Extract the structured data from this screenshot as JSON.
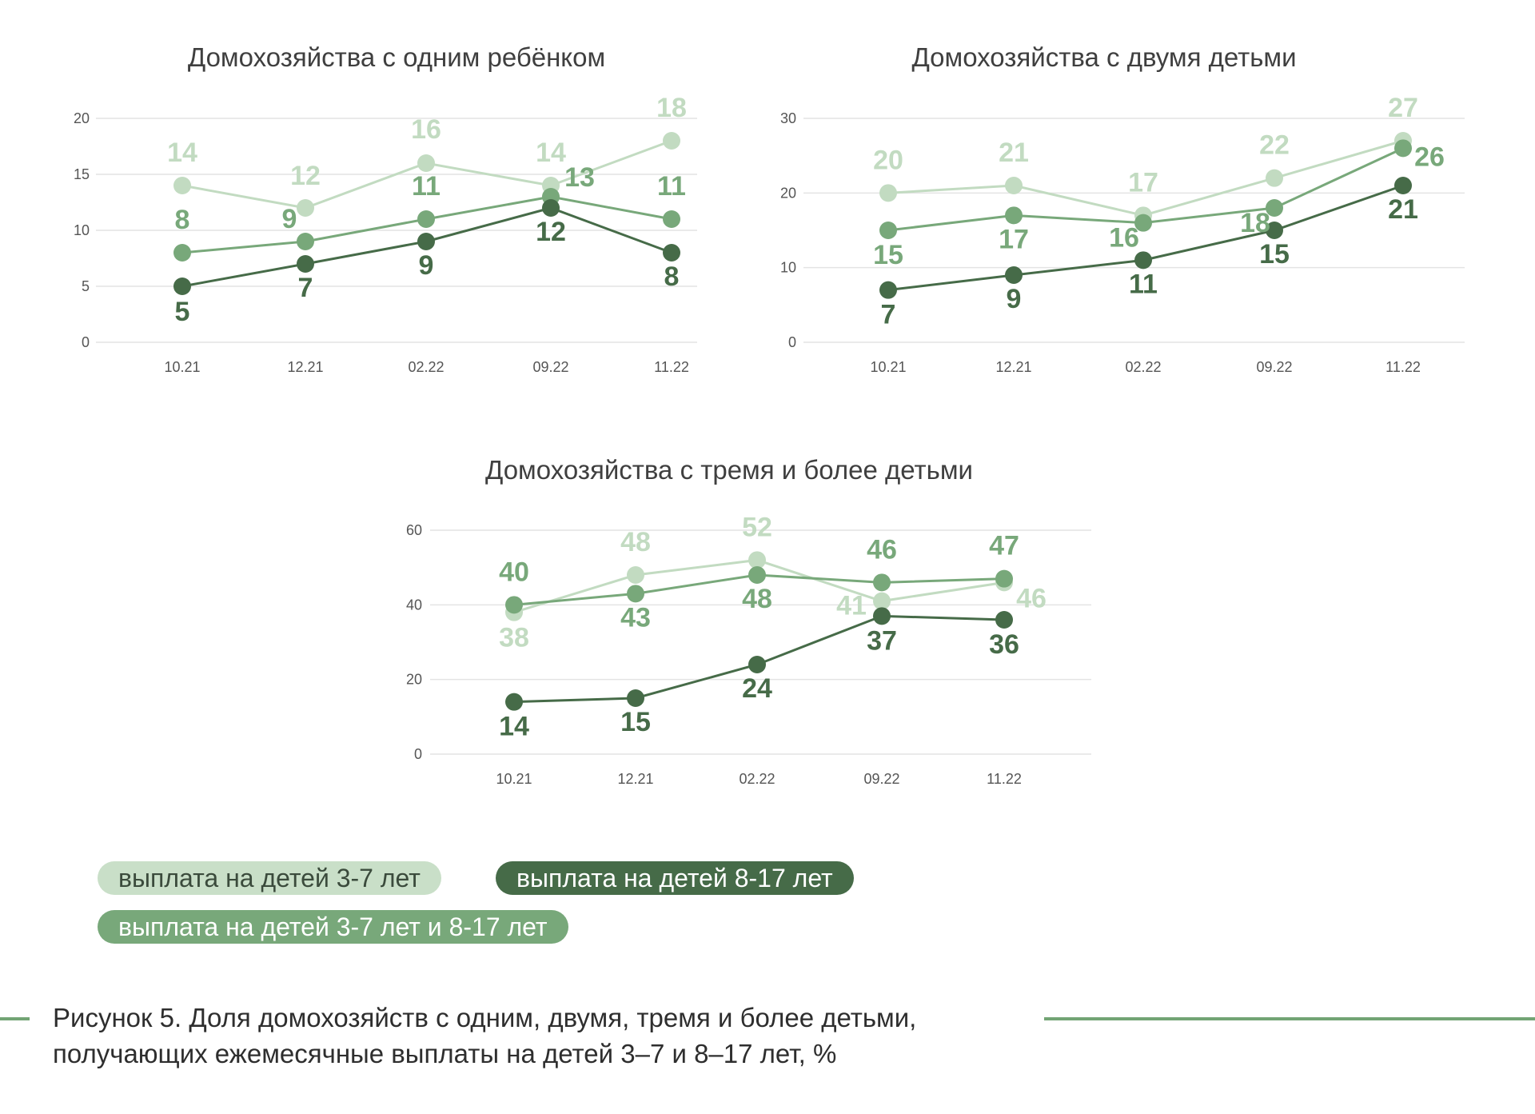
{
  "chart_data": [
    {
      "type": "line",
      "title": "Домохозяйства с одним ребёнком",
      "categories": [
        "10.21",
        "12.21",
        "02.22",
        "09.22",
        "11.22"
      ],
      "ylim": [
        0,
        20
      ],
      "yticks": [
        "0",
        "5",
        "10",
        "15",
        "20"
      ],
      "grid": true,
      "series": [
        {
          "key": "light",
          "values": [
            14,
            12,
            16,
            14,
            18
          ]
        },
        {
          "key": "mid",
          "values": [
            8,
            9,
            11,
            13,
            11
          ]
        },
        {
          "key": "dark",
          "values": [
            5,
            7,
            9,
            12,
            8
          ]
        }
      ]
    },
    {
      "type": "line",
      "title": "Домохозяйства с двумя детьми",
      "categories": [
        "10.21",
        "12.21",
        "02.22",
        "09.22",
        "11.22"
      ],
      "ylim": [
        0,
        30
      ],
      "yticks": [
        "0",
        "10",
        "20",
        "30"
      ],
      "grid": true,
      "series": [
        {
          "key": "light",
          "values": [
            20,
            21,
            17,
            22,
            27
          ]
        },
        {
          "key": "mid",
          "values": [
            15,
            17,
            16,
            18,
            26
          ]
        },
        {
          "key": "dark",
          "values": [
            7,
            9,
            11,
            15,
            21
          ]
        }
      ]
    },
    {
      "type": "line",
      "title": "Домохозяйства с тремя и более детьми",
      "categories": [
        "10.21",
        "12.21",
        "02.22",
        "09.22",
        "11.22"
      ],
      "ylim": [
        0,
        60
      ],
      "yticks": [
        "0",
        "20",
        "40",
        "60"
      ],
      "grid": true,
      "series": [
        {
          "key": "light",
          "values": [
            38,
            48,
            52,
            41,
            46
          ]
        },
        {
          "key": "mid",
          "values": [
            40,
            43,
            48,
            46,
            47
          ]
        },
        {
          "key": "dark",
          "values": [
            14,
            15,
            24,
            37,
            36
          ]
        }
      ]
    }
  ],
  "legend": {
    "light": "выплата на детей 3-7 лет",
    "dark": "выплата на детей 8-17 лет",
    "mid": "выплата на детей 3-7 лет и 8-17 лет"
  },
  "colors": {
    "light": "#c2dbc1",
    "mid": "#78a87a",
    "dark": "#466b48",
    "grid": "#e4e4e4",
    "caption_rule": "#72a474"
  },
  "caption": {
    "line1": "Рисунок 5. Доля домохозяйств с одним, двумя, тремя и более детьми,",
    "line2": "получающих  ежемесячные выплаты на детей 3–7 и 8–17 лет, %"
  }
}
